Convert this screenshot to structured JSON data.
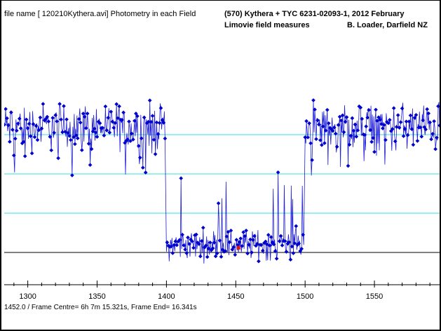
{
  "header": {
    "left": "file name [ 120210Kythera.avi]  Photometry in each Field",
    "right_line1": "(570) Kythera + TYC 6231-02093-1,     2012 February",
    "right_line2_left": "Limovie  field measures",
    "right_line2_right": "B. Loader,  Darfield NZ"
  },
  "footer": {
    "text": "1452.0 / Frame Centre=  6h 7m 15.321s,  Frame End= 16.341s"
  },
  "colors": {
    "series": "#1f1fd6",
    "marker": "#0000cc",
    "highlight": "#dd1111",
    "guide_lines": "#33dddd",
    "baseline": "#000000"
  },
  "chart_data": {
    "type": "line",
    "xlim": [
      1283,
      1597
    ],
    "ylim": [
      -0.45,
      3.2
    ],
    "x_ticks": [
      1300,
      1350,
      1400,
      1450,
      1500,
      1550
    ],
    "x_tick_labels": [
      "1300",
      "1350",
      "1400",
      "1450",
      "1500",
      "1550"
    ],
    "guide_levels": [
      0,
      1,
      2,
      3
    ],
    "baseline_level": 0,
    "highlight_point": {
      "x": 1452,
      "y": 0.12
    },
    "series": [
      {
        "segment": "pre",
        "x_range": [
          1283,
          1399
        ],
        "level": 3.2,
        "noise": 0.55
      },
      {
        "segment": "event",
        "x_range": [
          1400,
          1499
        ],
        "level": 0.2,
        "noise": 0.35
      },
      {
        "segment": "post",
        "x_range": [
          1500,
          1597
        ],
        "level": 3.2,
        "noise": 0.55
      }
    ]
  }
}
